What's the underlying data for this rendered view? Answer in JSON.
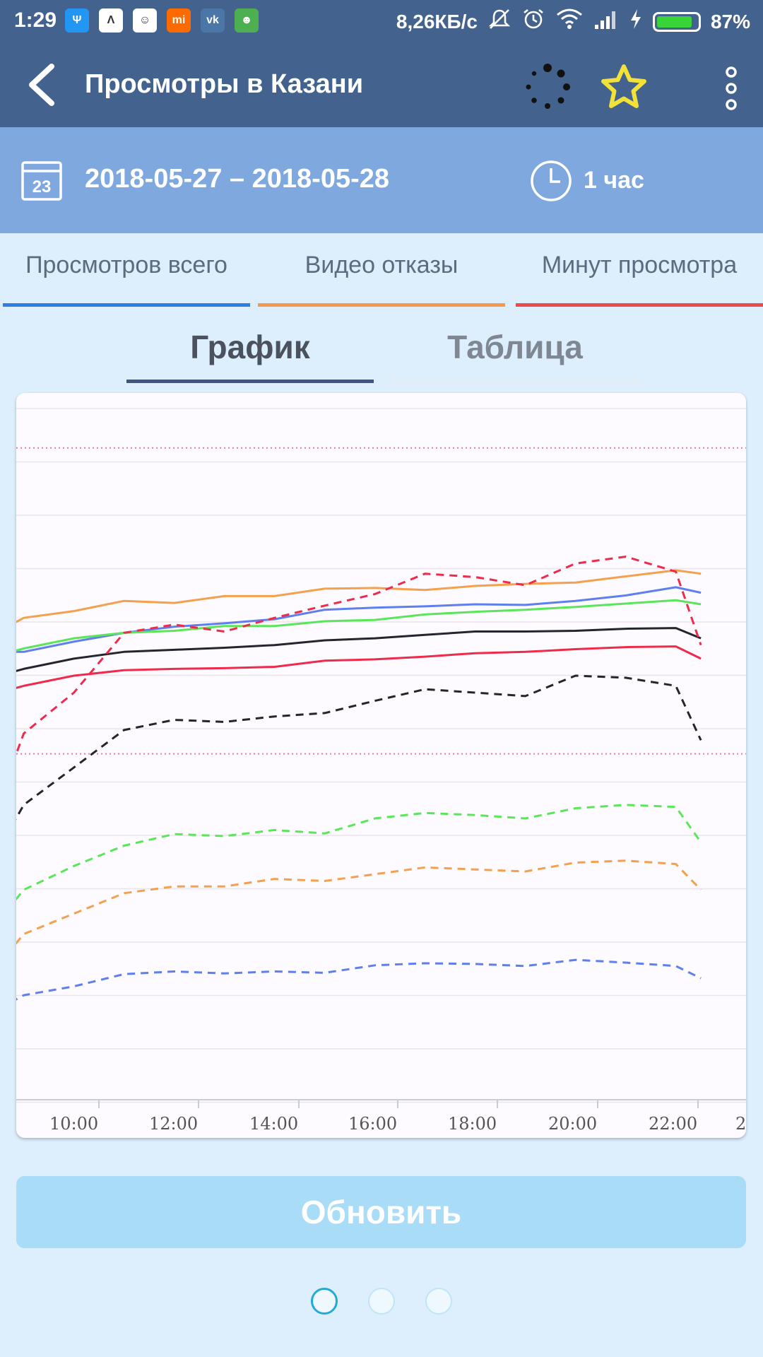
{
  "status_bar": {
    "time": "1:29",
    "apps": [
      {
        "icon": "usb-icon",
        "color": "#2196f3",
        "glyph": "Ψ"
      },
      {
        "icon": "arrow-app-icon",
        "color": "#ffffff",
        "glyph": "Λ"
      },
      {
        "icon": "raccoon-app-icon",
        "color": "#ffffff",
        "glyph": "☺"
      },
      {
        "icon": "mi-app-icon",
        "color": "#ff6a00",
        "glyph": "mi"
      },
      {
        "icon": "vk-icon",
        "color": "#4a76a8",
        "glyph": "vk"
      },
      {
        "icon": "android-icon",
        "color": "#4caf50",
        "glyph": "☻"
      }
    ],
    "net_speed": "8,26КБ/с",
    "battery_percent": "87%",
    "battery_level": 0.87
  },
  "appbar": {
    "title": "Просмотры в Казани"
  },
  "filters": {
    "date_range": "2018-05-27 – 2018-05-28",
    "calendar_day": "23",
    "interval": "1 час"
  },
  "metric_tabs": [
    {
      "label": "Просмотров всего",
      "color": "#2f7fe0"
    },
    {
      "label": "Видео отказы",
      "color": "#f5994e"
    },
    {
      "label": "Минут просмотра",
      "color": "#e94b4f"
    }
  ],
  "view_tabs": [
    {
      "label": "График",
      "active": true
    },
    {
      "label": "Таблица",
      "active": false
    }
  ],
  "chart_data": {
    "type": "line",
    "x_tick_labels": [
      "10:00",
      "12:00",
      "14:00",
      "16:00",
      "18:00",
      "20:00",
      "22:00",
      "2"
    ],
    "x": [
      8.5,
      9,
      10,
      11,
      12,
      13,
      14,
      15,
      16,
      17,
      18,
      19,
      20,
      21,
      22,
      22.5
    ],
    "xlim": [
      8.85,
      23.4
    ],
    "ylim": [
      0,
      100
    ],
    "grid": true,
    "reference_lines": [
      94,
      49
    ],
    "series": [
      {
        "color": "#f5a04e",
        "dash": false,
        "values": [
          67,
          69,
          70,
          71.5,
          71.2,
          72.2,
          72.2,
          73.3,
          73.4,
          73.1,
          73.7,
          74,
          74.2,
          75.1,
          76,
          75.5
        ]
      },
      {
        "color": "#5f7fee",
        "dash": false,
        "values": [
          64,
          64,
          65.5,
          66.8,
          67.7,
          68.2,
          68.8,
          70.2,
          70.5,
          70.7,
          71,
          70.9,
          71.5,
          72.3,
          73.5,
          72.7
        ]
      },
      {
        "color": "#5be65a",
        "dash": false,
        "values": [
          63.5,
          64.5,
          66,
          66.8,
          67.1,
          67.8,
          67.8,
          68.5,
          68.7,
          69.5,
          69.9,
          70.2,
          70.6,
          71.1,
          71.6,
          71
        ]
      },
      {
        "color": "#25252f",
        "dash": false,
        "values": [
          60.5,
          61.5,
          63,
          64,
          64.3,
          64.6,
          65,
          65.7,
          66,
          66.5,
          67,
          67,
          67.1,
          67.4,
          67.5,
          66
        ]
      },
      {
        "color": "#ee2b4b",
        "dash": false,
        "values": [
          58,
          59,
          60.5,
          61.3,
          61.5,
          61.6,
          61.8,
          62.7,
          62.9,
          63.3,
          63.8,
          64,
          64.4,
          64.7,
          64.8,
          63
        ]
      },
      {
        "color": "#ee2b4b",
        "dash": true,
        "values": [
          42,
          52,
          58,
          66.8,
          68,
          67,
          69,
          70.8,
          72.5,
          75.5,
          75,
          73.8,
          77,
          78,
          75.8,
          65
        ]
      },
      {
        "color": "#25252f",
        "dash": true,
        "values": [
          35,
          41.5,
          47,
          52.5,
          54,
          53.7,
          54.5,
          55,
          56.8,
          58.5,
          58,
          57.5,
          60.5,
          60.2,
          59,
          51
        ]
      },
      {
        "color": "#5be65a",
        "dash": true,
        "values": [
          24.5,
          29,
          32.5,
          35.5,
          37.2,
          36.9,
          37.8,
          37.3,
          39.5,
          40.3,
          40,
          39.5,
          41,
          41.5,
          41.2,
          36
        ]
      },
      {
        "color": "#f5a04e",
        "dash": true,
        "values": [
          18,
          22.5,
          25.5,
          28.5,
          29.5,
          29.5,
          30.6,
          30.3,
          31.3,
          32.3,
          32,
          31.7,
          33,
          33.3,
          32.8,
          29
        ]
      },
      {
        "color": "#5f7fee",
        "dash": true,
        "values": [
          11.5,
          13.5,
          14.8,
          16.6,
          17,
          16.7,
          17,
          16.8,
          17.9,
          18.2,
          18.1,
          17.8,
          18.7,
          18.3,
          17.8,
          16
        ]
      }
    ]
  },
  "refresh_label": "Обновить",
  "pager": {
    "count": 3,
    "active": 0
  }
}
